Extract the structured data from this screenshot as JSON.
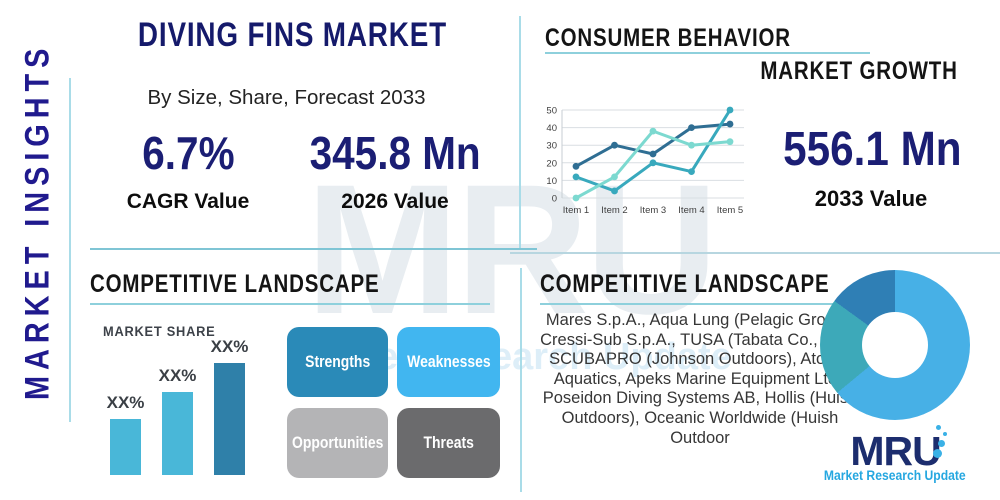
{
  "page": {
    "title": "DIVING FINS MARKET",
    "subtitle": "By Size, Share, Forecast 2033"
  },
  "sidebar": {
    "label": "MARKET INSIGHTS"
  },
  "stats": {
    "cagr": {
      "value": "6.7%",
      "label": "CAGR Value"
    },
    "base_year": {
      "value": "345.8 Mn",
      "label": "2026 Value"
    },
    "forecast_year": {
      "value": "556.1 Mn",
      "label": "2033 Value"
    }
  },
  "sections": {
    "consumer_behavior": "CONSUMER BEHAVIOR",
    "market_growth": "MARKET GROWTH",
    "competitive_left": "COMPETITIVE LANDSCAPE",
    "competitive_right": "COMPETITIVE LANDSCAPE"
  },
  "swot": {
    "strengths": "Strengths",
    "weaknesses": "Weaknesses",
    "opportunities": "Opportunities",
    "threats": "Threats"
  },
  "companies": "Mares S.p.A., Aqua Lung (Pelagic Group), Cressi-Sub S.p.A., TUSA (Tabata Co., Ltd.), SCUBAPRO (Johnson Outdoors), Atomic Aquatics, Apeks Marine Equipment Ltd., Poseidon Diving Systems AB, Hollis (Huish Outdoors), Oceanic Worldwide (Huish Outdoor",
  "logo": {
    "text": "MRU",
    "tagline": "Market Research Update"
  },
  "watermark": {
    "text": "MRU",
    "tagline": "Market Research Update"
  },
  "colors": {
    "navy": "#1b1e74",
    "indigo_sidebar": "#201a8e",
    "accent_blue": "#25a7e0",
    "divider_teal": "#8ed0dc",
    "swot": {
      "strengths": "#2a8ab8",
      "weaknesses": "#41b6f0",
      "opportunities": "#b4b4b6",
      "threats": "#6b6b6d"
    }
  },
  "chart_data": [
    {
      "id": "consumer-behavior-line",
      "type": "line",
      "title": "CONSUMER BEHAVIOR",
      "categories": [
        "Item 1",
        "Item 2",
        "Item 3",
        "Item 4",
        "Item 5"
      ],
      "series": [
        {
          "name": "series-dark-blue",
          "color": "#2f6e93",
          "values": [
            18,
            30,
            25,
            40,
            42
          ]
        },
        {
          "name": "series-teal",
          "color": "#38a9bd",
          "values": [
            12,
            4,
            20,
            15,
            50
          ]
        },
        {
          "name": "series-light-aqua",
          "color": "#7cd9d0",
          "values": [
            0,
            12,
            38,
            30,
            32
          ]
        }
      ],
      "ylim": [
        0,
        50
      ],
      "yticks": [
        0,
        10,
        20,
        30,
        40,
        50
      ],
      "grid": true,
      "legend": false
    },
    {
      "id": "market-share-bar",
      "type": "bar",
      "title": "MARKET SHARE",
      "categories": [
        "bar-1",
        "bar-2",
        "bar-3"
      ],
      "values": [
        25,
        37,
        50
      ],
      "labels": [
        "XX%",
        "XX%",
        "XX%"
      ],
      "colors": [
        "#49b7d8",
        "#49b7d8",
        "#2f80a9"
      ],
      "ylim": [
        0,
        55
      ],
      "grid": false
    },
    {
      "id": "competitor-donut",
      "type": "pie",
      "donut": true,
      "slices": [
        {
          "name": "segment-large",
          "value": 64,
          "color": "#47b0e6"
        },
        {
          "name": "segment-teal",
          "value": 21,
          "color": "#3da9b9"
        },
        {
          "name": "segment-dark",
          "value": 15,
          "color": "#2f7fb5"
        }
      ],
      "legend": false
    }
  ]
}
